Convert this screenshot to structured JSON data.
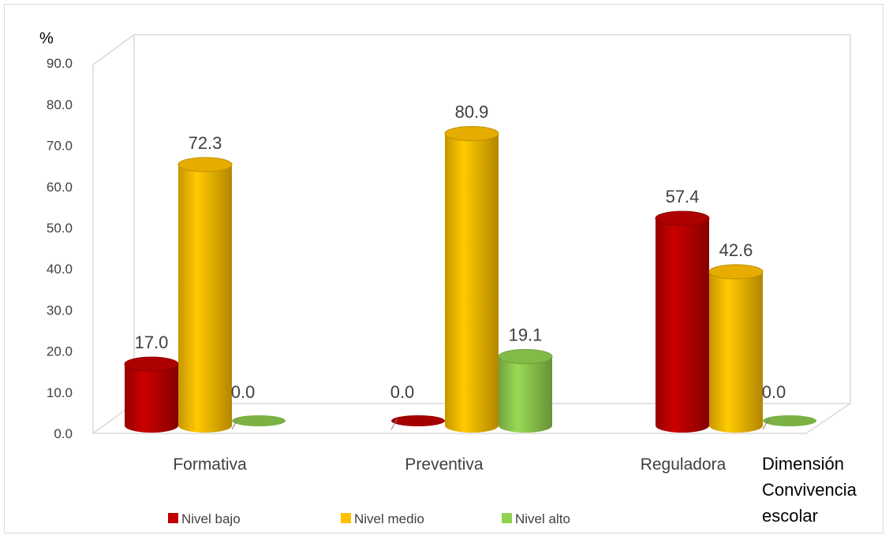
{
  "chart_data": {
    "type": "bar",
    "style": "3d-cylinder",
    "unit_label": "%",
    "dimension_label": [
      "Dimensión",
      "Convivencia",
      "escolar"
    ],
    "categories": [
      "Formativa",
      "Preventiva",
      "Reguladora"
    ],
    "series": [
      {
        "name": "Nivel bajo",
        "color": "#c00000",
        "values": [
          17.0,
          0.0,
          57.4
        ]
      },
      {
        "name": "Nivel medio",
        "color": "#ffc000",
        "values": [
          72.3,
          80.9,
          42.6
        ]
      },
      {
        "name": "Nivel alto",
        "color": "#92d050",
        "values": [
          0.0,
          19.1,
          0.0
        ]
      }
    ],
    "value_labels": [
      [
        "17.0",
        "0.0",
        "57.4"
      ],
      [
        "72.3",
        "80.9",
        "42.6"
      ],
      [
        "0.0",
        "19.1",
        "0.0"
      ]
    ],
    "yticks": [
      "0.0",
      "10.0",
      "20.0",
      "30.0",
      "40.0",
      "50.0",
      "60.0",
      "70.0",
      "80.0",
      "90.0"
    ],
    "ylim": [
      0,
      90
    ],
    "grid": false,
    "legend_position": "bottom"
  }
}
